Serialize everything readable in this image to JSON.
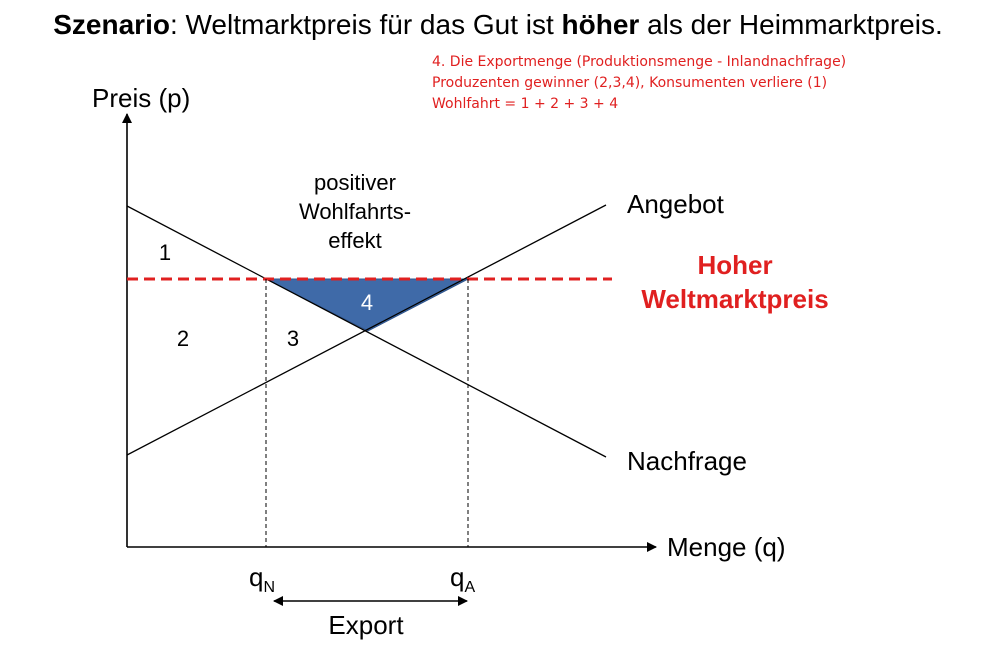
{
  "title": {
    "scenario_word": "Szenario",
    "part1": ": Weltmarktpreis für das Gut ist ",
    "emphasis": "höher",
    "part2": " als der Heimmarktpreis."
  },
  "note_lines": [
    "4. Die Exportmenge (Produktionsmenge - Inlandnachfrage)",
    "Produzenten gewinner (2,3,4), Konsumenten verliere (1)",
    "Wohlfahrt = 1 + 2 + 3 + 4"
  ],
  "diagram": {
    "y_axis_label": "Preis (p)",
    "x_axis_label": "Menge (q)",
    "supply_label": "Angebot",
    "demand_label": "Nachfrage",
    "world_price_label_line1": "Hoher",
    "world_price_label_line2": "Weltmarktpreis",
    "welfare_label_line1": "positiver",
    "welfare_label_line2": "Wohlfahrts-",
    "welfare_label_line3": "effekt",
    "area1": "1",
    "area2": "2",
    "area3": "3",
    "area4": "4",
    "qN_main": "q",
    "qN_sub": "N",
    "qA_main": "q",
    "qA_sub": "A",
    "export_label": "Export"
  },
  "colors": {
    "accent_red": "#e02020",
    "triangle_fill": "#3f6aa8"
  }
}
